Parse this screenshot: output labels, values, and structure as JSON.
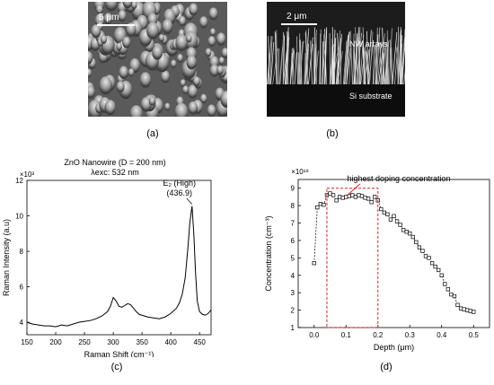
{
  "captions": {
    "a": "(a)",
    "b": "(b)",
    "c": "(c)",
    "d": "(d)"
  },
  "sem_a": {
    "scale_label": "5 μm"
  },
  "sem_b": {
    "scale_label": "2 μm",
    "label_top": "NW arrays",
    "label_bottom": "Si substrate"
  },
  "chart_data": [
    {
      "type": "line",
      "title": "ZnO Nanowire (D = 200 nm)",
      "subtitle": "λexc: 532 nm",
      "xlabel": "Raman Shift (cm⁻¹)",
      "ylabel": "Raman Intensity (a.u)",
      "y_multiplier": "×10³",
      "xlim": [
        150,
        470
      ],
      "ylim": [
        3.3,
        12
      ],
      "xticks": [
        150,
        200,
        250,
        300,
        350,
        400,
        450
      ],
      "yticks": [
        4,
        6,
        8,
        10,
        12
      ],
      "annotation": "E2 (High) (436.9)",
      "annotation_line1": "E₂ (High)",
      "annotation_line2": "(436.9)",
      "x": [
        150,
        160,
        170,
        180,
        190,
        200,
        210,
        220,
        230,
        240,
        250,
        260,
        270,
        280,
        290,
        295,
        300,
        305,
        310,
        315,
        320,
        325,
        330,
        335,
        340,
        345,
        350,
        360,
        370,
        380,
        390,
        400,
        410,
        415,
        420,
        425,
        430,
        433,
        436.9,
        440,
        443,
        446,
        450,
        455,
        460,
        465,
        470
      ],
      "y": [
        4.0,
        3.9,
        3.85,
        3.8,
        3.8,
        3.75,
        3.85,
        3.8,
        3.9,
        4.0,
        4.05,
        4.1,
        4.2,
        4.35,
        4.6,
        4.9,
        5.4,
        5.2,
        4.9,
        4.85,
        4.95,
        5.05,
        5.0,
        4.8,
        4.6,
        4.45,
        4.4,
        4.3,
        4.25,
        4.2,
        4.3,
        4.5,
        4.8,
        5.1,
        5.6,
        6.5,
        8.3,
        9.6,
        10.55,
        9.0,
        6.8,
        5.2,
        4.6,
        4.45,
        4.4,
        4.5,
        4.7
      ]
    },
    {
      "type": "scatter",
      "title": "highest doping concentration",
      "xlabel": "Depth (μm)",
      "ylabel": "Concentration (cm⁻³)",
      "y_multiplier": "×10¹⁹",
      "xlim": [
        -0.05,
        0.55
      ],
      "ylim": [
        1,
        9.5
      ],
      "xticks": [
        0.0,
        0.1,
        0.2,
        0.3,
        0.4,
        0.5
      ],
      "yticks": [
        1,
        2,
        3,
        4,
        5,
        6,
        7,
        8,
        9
      ],
      "highlight_range_x": [
        0.04,
        0.2
      ],
      "x": [
        0.0,
        0.01,
        0.02,
        0.03,
        0.04,
        0.05,
        0.06,
        0.07,
        0.08,
        0.09,
        0.1,
        0.11,
        0.12,
        0.13,
        0.14,
        0.15,
        0.16,
        0.17,
        0.18,
        0.19,
        0.2,
        0.21,
        0.22,
        0.23,
        0.24,
        0.25,
        0.26,
        0.27,
        0.28,
        0.29,
        0.3,
        0.31,
        0.32,
        0.33,
        0.34,
        0.35,
        0.36,
        0.37,
        0.38,
        0.39,
        0.4,
        0.41,
        0.42,
        0.43,
        0.44,
        0.45,
        0.46,
        0.47,
        0.48,
        0.49,
        0.5
      ],
      "y": [
        4.7,
        7.9,
        8.1,
        8.05,
        8.6,
        8.7,
        8.6,
        8.3,
        8.5,
        8.45,
        8.5,
        8.55,
        8.6,
        8.5,
        8.6,
        8.55,
        8.45,
        8.4,
        8.2,
        8.5,
        8.3,
        7.8,
        7.6,
        7.5,
        7.2,
        7.4,
        7.1,
        6.9,
        6.6,
        6.5,
        6.4,
        6.2,
        5.9,
        5.6,
        5.4,
        5.1,
        5.0,
        4.7,
        4.5,
        4.3,
        4.0,
        3.5,
        3.2,
        2.9,
        2.8,
        2.3,
        2.1,
        2.05,
        2.0,
        1.95,
        1.9
      ]
    }
  ]
}
